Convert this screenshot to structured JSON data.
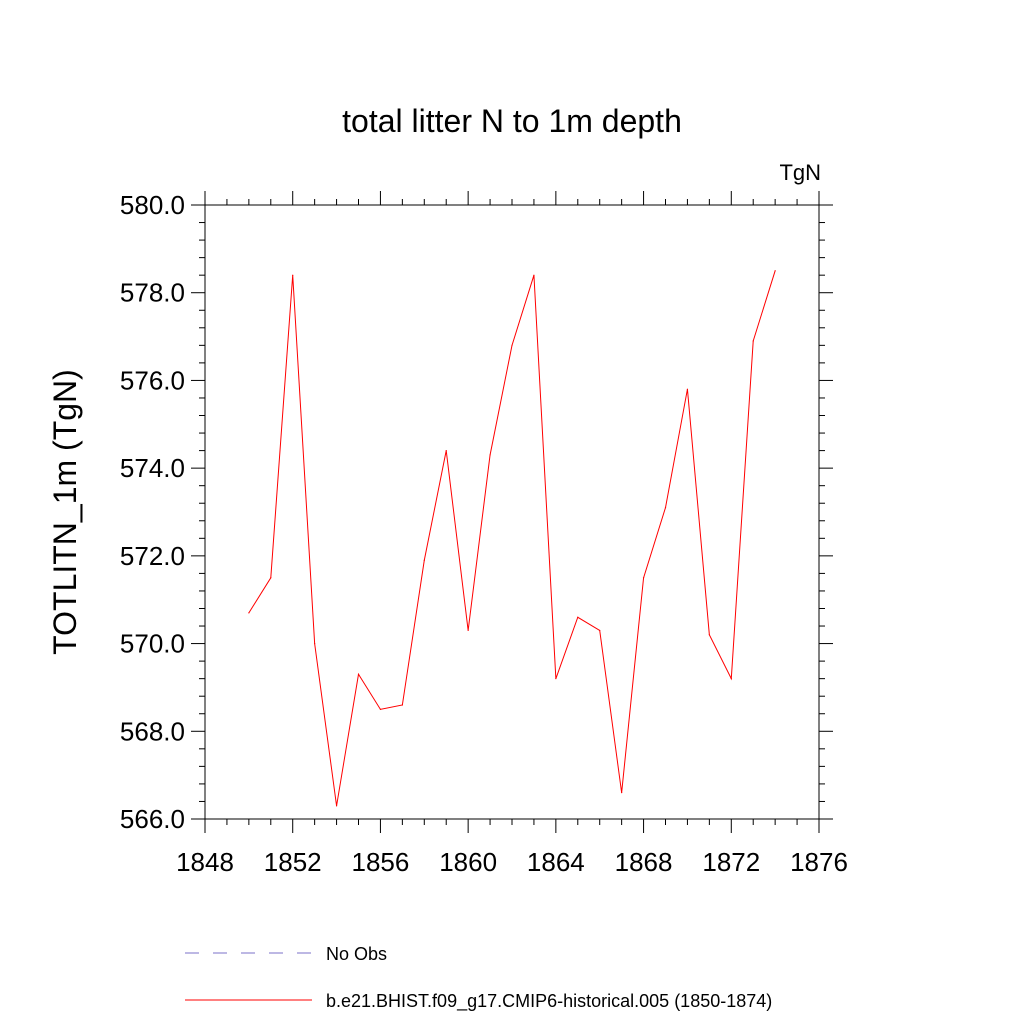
{
  "chart_data": {
    "type": "line",
    "title": "total litter N to 1m depth",
    "units_label": "TgN",
    "ylabel": "TOTLITN_1m  (TgN)",
    "xlabel": "",
    "xlim": [
      1848,
      1876
    ],
    "ylim": [
      566.0,
      580.0
    ],
    "x_ticks": [
      1848,
      1852,
      1856,
      1860,
      1864,
      1868,
      1872,
      1876
    ],
    "x_tick_labels": [
      "1848",
      "1852",
      "1856",
      "1860",
      "1864",
      "1868",
      "1872",
      "1876"
    ],
    "y_ticks": [
      566,
      568,
      570,
      572,
      574,
      576,
      578,
      580
    ],
    "y_tick_labels": [
      "566.0",
      "568.0",
      "570.0",
      "572.0",
      "574.0",
      "576.0",
      "578.0",
      "580.0"
    ],
    "grid": false,
    "legend_position": "bottom",
    "series": [
      {
        "name": "b.e21.BHIST.f09_g17.CMIP6-historical.005 (1850-1874)",
        "color": "#ff0000",
        "style": "solid",
        "x": [
          1850,
          1851,
          1852,
          1853,
          1854,
          1855,
          1856,
          1857,
          1858,
          1859,
          1860,
          1861,
          1862,
          1863,
          1864,
          1865,
          1866,
          1867,
          1868,
          1869,
          1870,
          1871,
          1872,
          1873,
          1874
        ],
        "values": [
          570.7,
          571.5,
          578.4,
          570.0,
          566.3,
          569.3,
          568.5,
          568.6,
          571.9,
          574.4,
          570.3,
          574.3,
          576.8,
          578.4,
          569.2,
          570.6,
          570.3,
          566.6,
          571.5,
          573.1,
          575.8,
          570.2,
          569.2,
          576.9,
          578.5
        ]
      }
    ],
    "legend_entries": [
      {
        "label": "No Obs",
        "color": "#7b72c8",
        "style": "dashed"
      },
      {
        "label": "b.e21.BHIST.f09_g17.CMIP6-historical.005 (1850-1874)",
        "color": "#ff0000",
        "style": "solid"
      }
    ]
  }
}
